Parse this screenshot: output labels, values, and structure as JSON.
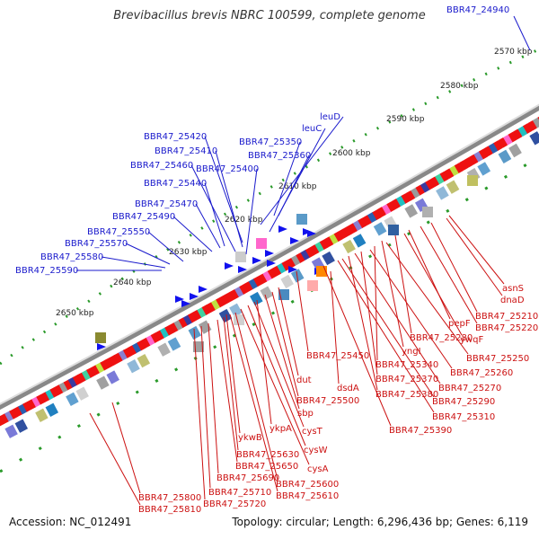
{
  "title": "Brevibacillus brevis NBRC 100599, complete genome",
  "footer": {
    "accession": "Accession: NC_012491",
    "topology": "Topology: circular; Length: 6,296,436 bp; Genes: 6,119"
  },
  "colors": {
    "upper_label": "#1a1acc",
    "lower_label": "#cc1111",
    "scale": "#2a9a2a",
    "forward_gene": "#ee1111",
    "reverse_gene": "#1111ee"
  },
  "kbp_ticks": [
    "2570 kbp",
    "2580 kbp",
    "2590 kbp",
    "2600 kbp",
    "2610 kbp",
    "2620 kbp",
    "2630 kbp",
    "2640 kbp",
    "2650 kbp"
  ],
  "upper_labels": [
    "BBR47_24940",
    "leuD",
    "leuC",
    "BBR47_25350",
    "BBR47_25360",
    "BBR47_25420",
    "BBR47_25410",
    "BBR47_25460",
    "BBR47_25400",
    "BBR47_25440",
    "BBR47_25470",
    "BBR47_25490",
    "BBR47_25550",
    "BBR47_25570",
    "BBR47_25580",
    "BBR47_25590"
  ],
  "lower_labels": [
    "asnS",
    "dnaD",
    "BBR47_25210",
    "BBR47_25220",
    "pepF",
    "ywqF",
    "BBR47_25280",
    "yngI",
    "BBR47_25250",
    "BBR47_25340",
    "BBR47_25260",
    "BBR47_25450",
    "BBR47_25370",
    "BBR47_25270",
    "BBR47_25380",
    "BBR47_25290",
    "dut",
    "dsdA",
    "BBR47_25500",
    "BBR47_25310",
    "sbp",
    "ykpA",
    "cysT",
    "BBR47_25390",
    "ykwB",
    "cysW",
    "BBR47_25630",
    "BBR47_25650",
    "cysA",
    "BBR47_25690",
    "BBR47_25600",
    "BBR47_25710",
    "BBR47_25610",
    "BBR47_25800",
    "BBR47_25720",
    "BBR47_25810"
  ]
}
